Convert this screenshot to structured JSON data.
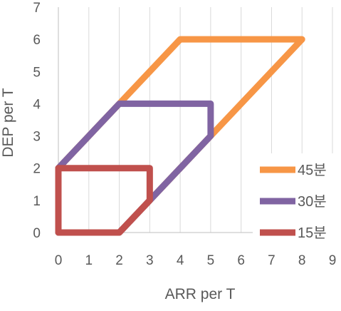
{
  "chart_data": {
    "type": "line",
    "xlabel": "ARR per T",
    "ylabel": "DEP per T",
    "xlim": [
      0,
      9
    ],
    "ylim": [
      0,
      7
    ],
    "x_ticks": [
      "0",
      "1",
      "2",
      "3",
      "4",
      "5",
      "6",
      "7",
      "8",
      "9"
    ],
    "y_ticks": [
      "0",
      "1",
      "2",
      "3",
      "4",
      "5",
      "6",
      "7"
    ],
    "grid": "vertical",
    "legend_position": "bottom-right",
    "series": [
      {
        "name": "45분",
        "color": "#F79646",
        "points": [
          [
            0,
            2
          ],
          [
            2,
            4
          ],
          [
            4,
            6
          ],
          [
            8,
            6
          ],
          [
            5,
            3
          ],
          [
            3,
            1
          ],
          [
            2,
            0
          ],
          [
            0,
            0
          ],
          [
            0,
            2
          ]
        ]
      },
      {
        "name": "30분",
        "color": "#8064A2",
        "points": [
          [
            0,
            2
          ],
          [
            2,
            4
          ],
          [
            5,
            4
          ],
          [
            5,
            3
          ],
          [
            3,
            1
          ],
          [
            2,
            0
          ],
          [
            0,
            0
          ],
          [
            0,
            2
          ]
        ]
      },
      {
        "name": "15분",
        "color": "#C0504D",
        "points": [
          [
            0,
            2
          ],
          [
            3,
            2
          ],
          [
            3,
            1
          ],
          [
            2,
            0
          ],
          [
            0,
            0
          ],
          [
            0,
            2
          ]
        ]
      }
    ]
  }
}
